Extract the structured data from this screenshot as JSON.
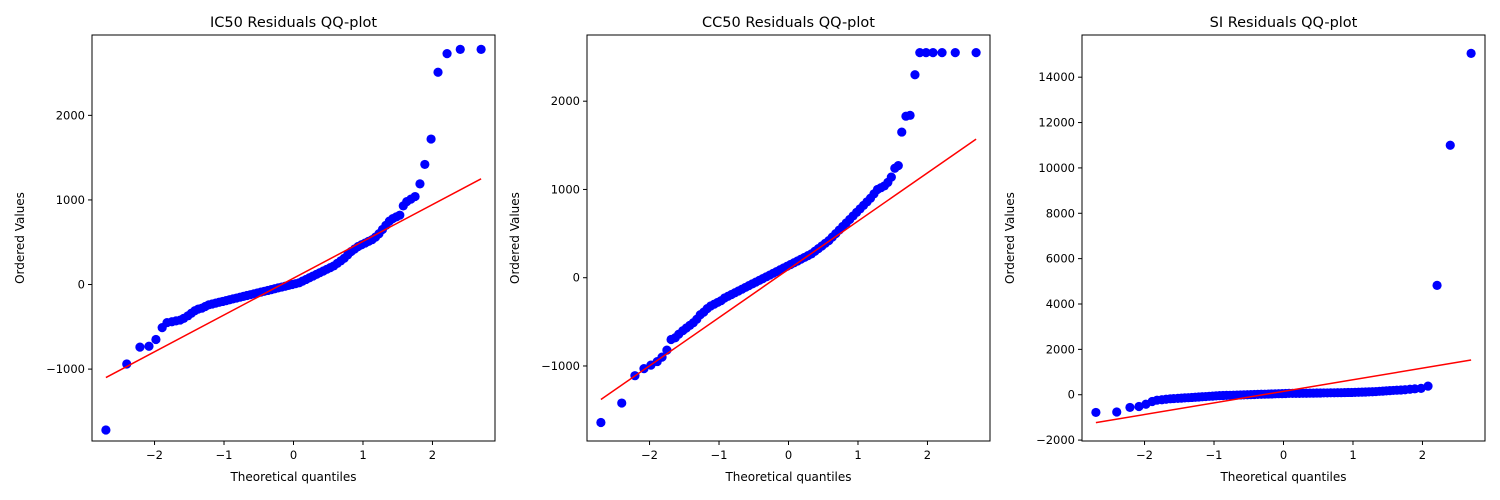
{
  "chart_data": [
    {
      "type": "scatter",
      "title": "IC50 Residuals QQ-plot",
      "xlabel": "Theoretical quantiles",
      "ylabel": "Ordered Values",
      "xlim": [
        -2.9,
        2.9
      ],
      "ylim": [
        -1850,
        2950
      ],
      "xticks": [
        -2,
        -1,
        0,
        1,
        2
      ],
      "yticks": [
        -1000,
        0,
        1000,
        2000
      ],
      "grid": false,
      "marker_color": "#0000ff",
      "line_color": "#ff0000",
      "fit_line": {
        "x": [
          -2.7,
          2.7
        ],
        "y": [
          -1100,
          1250
        ]
      },
      "series": [
        {
          "x": [
            -2.7,
            -2.4,
            -2.21,
            -2.08,
            -1.98,
            -1.89,
            -1.82,
            -1.75,
            -1.69,
            -1.63,
            -1.58,
            -1.52,
            -1.47,
            -1.42,
            -1.37,
            -1.32,
            -1.27,
            -1.22,
            -1.17,
            -1.12,
            -1.07,
            -1.02,
            -0.97,
            -0.92,
            -0.87,
            -0.82,
            -0.77,
            -0.72,
            -0.67,
            -0.62,
            -0.57,
            -0.52,
            -0.47,
            -0.42,
            -0.37,
            -0.32,
            -0.27,
            -0.22,
            -0.17,
            -0.12,
            -0.07,
            -0.02,
            0.03,
            0.08,
            0.13,
            0.18,
            0.23,
            0.28,
            0.33,
            0.38,
            0.43,
            0.48,
            0.53,
            0.58,
            0.63,
            0.68,
            0.73,
            0.78,
            0.83,
            0.88,
            0.93,
            0.98,
            1.03,
            1.08,
            1.13,
            1.18,
            1.23,
            1.28,
            1.33,
            1.38,
            1.43,
            1.48,
            1.53,
            1.58,
            1.63,
            1.69,
            1.75,
            1.82,
            1.89,
            1.98,
            2.08,
            2.21,
            2.4,
            2.7
          ],
          "y": [
            -1720,
            -940,
            -740,
            -730,
            -650,
            -510,
            -450,
            -440,
            -430,
            -420,
            -400,
            -370,
            -340,
            -310,
            -290,
            -280,
            -260,
            -240,
            -230,
            -220,
            -210,
            -200,
            -190,
            -180,
            -170,
            -160,
            -150,
            -140,
            -130,
            -120,
            -110,
            -100,
            -90,
            -80,
            -70,
            -60,
            -50,
            -40,
            -30,
            -20,
            -10,
            0,
            10,
            20,
            40,
            60,
            80,
            100,
            120,
            140,
            160,
            180,
            200,
            220,
            250,
            280,
            310,
            350,
            390,
            420,
            450,
            470,
            490,
            510,
            530,
            560,
            600,
            650,
            700,
            750,
            780,
            800,
            820,
            930,
            980,
            1010,
            1040,
            1190,
            1420,
            1720,
            2510,
            2730,
            2780,
            2780
          ]
        }
      ]
    },
    {
      "type": "scatter",
      "title": "CC50 Residuals QQ-plot",
      "xlabel": "Theoretical quantiles",
      "ylabel": "Ordered Values",
      "xlim": [
        -2.9,
        2.9
      ],
      "ylim": [
        -1850,
        2750
      ],
      "xticks": [
        -2,
        -1,
        0,
        1,
        2
      ],
      "yticks": [
        -1000,
        0,
        1000,
        2000
      ],
      "grid": false,
      "marker_color": "#0000ff",
      "line_color": "#ff0000",
      "fit_line": {
        "x": [
          -2.7,
          2.7
        ],
        "y": [
          -1380,
          1570
        ]
      },
      "series": [
        {
          "x": [
            -2.7,
            -2.4,
            -2.21,
            -2.08,
            -1.98,
            -1.89,
            -1.82,
            -1.75,
            -1.69,
            -1.63,
            -1.58,
            -1.52,
            -1.47,
            -1.42,
            -1.37,
            -1.32,
            -1.27,
            -1.22,
            -1.17,
            -1.12,
            -1.07,
            -1.02,
            -0.97,
            -0.92,
            -0.87,
            -0.82,
            -0.77,
            -0.72,
            -0.67,
            -0.62,
            -0.57,
            -0.52,
            -0.47,
            -0.42,
            -0.37,
            -0.32,
            -0.27,
            -0.22,
            -0.17,
            -0.12,
            -0.07,
            -0.02,
            0.03,
            0.08,
            0.13,
            0.18,
            0.23,
            0.28,
            0.33,
            0.38,
            0.43,
            0.48,
            0.53,
            0.58,
            0.63,
            0.68,
            0.73,
            0.78,
            0.83,
            0.88,
            0.93,
            0.98,
            1.03,
            1.08,
            1.13,
            1.18,
            1.23,
            1.28,
            1.33,
            1.38,
            1.43,
            1.48,
            1.53,
            1.58,
            1.63,
            1.69,
            1.75,
            1.82,
            1.89,
            1.98,
            2.08,
            2.21,
            2.4,
            2.7
          ],
          "y": [
            -1640,
            -1420,
            -1110,
            -1030,
            -990,
            -950,
            -900,
            -820,
            -700,
            -680,
            -640,
            -600,
            -570,
            -540,
            -510,
            -470,
            -420,
            -390,
            -350,
            -320,
            -300,
            -280,
            -260,
            -230,
            -210,
            -190,
            -170,
            -150,
            -130,
            -110,
            -90,
            -70,
            -50,
            -30,
            -10,
            10,
            30,
            50,
            70,
            90,
            110,
            130,
            150,
            170,
            190,
            210,
            230,
            250,
            270,
            300,
            330,
            360,
            390,
            420,
            460,
            500,
            540,
            580,
            620,
            660,
            700,
            740,
            780,
            820,
            860,
            900,
            950,
            1000,
            1020,
            1040,
            1080,
            1140,
            1240,
            1270,
            1650,
            1830,
            1840,
            2300,
            2550,
            2550,
            2550,
            2550,
            2550,
            2550
          ]
        }
      ]
    },
    {
      "type": "scatter",
      "title": "SI Residuals QQ-plot",
      "xlabel": "Theoretical quantiles",
      "ylabel": "Ordered Values",
      "xlim": [
        -2.9,
        2.9
      ],
      "ylim": [
        -2040,
        15860
      ],
      "xticks": [
        -2,
        -1,
        0,
        1,
        2
      ],
      "yticks": [
        -2000,
        0,
        2000,
        4000,
        6000,
        8000,
        10000,
        12000,
        14000
      ],
      "grid": false,
      "marker_color": "#0000ff",
      "line_color": "#ff0000",
      "fit_line": {
        "x": [
          -2.7,
          2.7
        ],
        "y": [
          -1230,
          1530
        ]
      },
      "series": [
        {
          "x": [
            -2.7,
            -2.4,
            -2.21,
            -2.08,
            -1.98,
            -1.89,
            -1.82,
            -1.75,
            -1.69,
            -1.63,
            -1.58,
            -1.52,
            -1.47,
            -1.42,
            -1.37,
            -1.32,
            -1.27,
            -1.22,
            -1.17,
            -1.12,
            -1.07,
            -1.02,
            -0.97,
            -0.92,
            -0.87,
            -0.82,
            -0.77,
            -0.72,
            -0.67,
            -0.62,
            -0.57,
            -0.52,
            -0.47,
            -0.42,
            -0.37,
            -0.32,
            -0.27,
            -0.22,
            -0.17,
            -0.12,
            -0.07,
            -0.02,
            0.03,
            0.08,
            0.13,
            0.18,
            0.23,
            0.28,
            0.33,
            0.38,
            0.43,
            0.48,
            0.53,
            0.58,
            0.63,
            0.68,
            0.73,
            0.78,
            0.83,
            0.88,
            0.93,
            0.98,
            1.03,
            1.08,
            1.13,
            1.18,
            1.23,
            1.28,
            1.33,
            1.38,
            1.43,
            1.48,
            1.53,
            1.58,
            1.63,
            1.69,
            1.75,
            1.82,
            1.89,
            1.98,
            2.08,
            2.21,
            2.4,
            2.7
          ],
          "y": [
            -780,
            -760,
            -560,
            -520,
            -420,
            -300,
            -240,
            -220,
            -200,
            -180,
            -170,
            -160,
            -150,
            -140,
            -130,
            -120,
            -110,
            -100,
            -90,
            -80,
            -70,
            -60,
            -50,
            -40,
            -35,
            -30,
            -25,
            -20,
            -15,
            -10,
            -5,
            0,
            5,
            10,
            15,
            20,
            25,
            30,
            35,
            40,
            45,
            50,
            55,
            60,
            60,
            60,
            60,
            65,
            65,
            70,
            70,
            75,
            75,
            80,
            80,
            85,
            85,
            90,
            90,
            95,
            100,
            100,
            105,
            110,
            115,
            120,
            125,
            130,
            140,
            150,
            160,
            170,
            180,
            190,
            200,
            210,
            220,
            240,
            260,
            280,
            380,
            4820,
            11000,
            15050
          ]
        }
      ]
    }
  ]
}
